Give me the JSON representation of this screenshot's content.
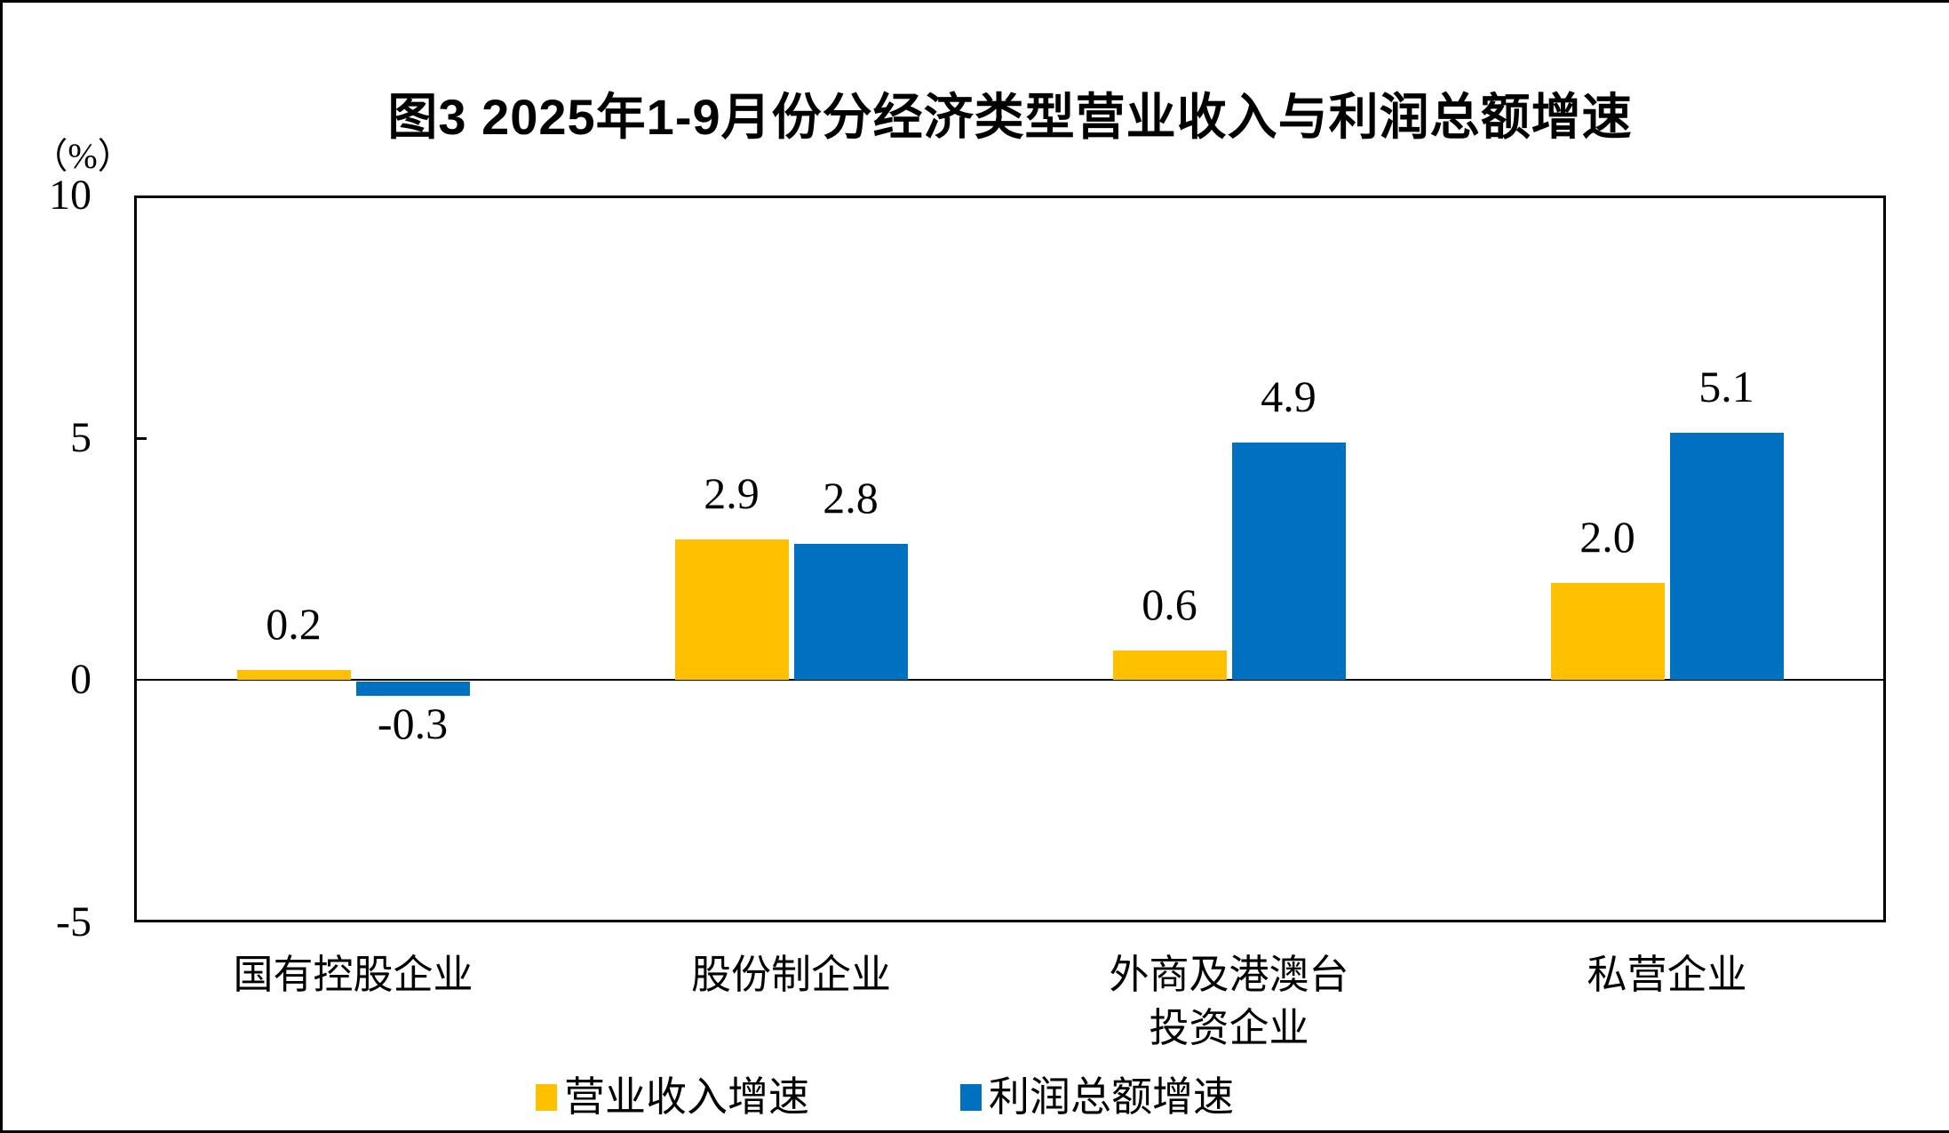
{
  "page": {
    "figure_caption": "图3 2025年1-9月份分经济类型营业收入与利润总额增速"
  },
  "chart_data": {
    "type": "bar",
    "title": "图3 2025年1-9月份分经济类型营业收入与利润总额增速",
    "ylabel_unit": "（%）",
    "ylim": [
      -5,
      10
    ],
    "yticks": [
      10,
      5,
      0,
      -5
    ],
    "grid": "none",
    "legend_position": "bottom",
    "categories": [
      "国有控股企业",
      "股份制企业",
      "外商及港澳台\n投资企业",
      "私营企业"
    ],
    "series": [
      {
        "name": "营业收入增速",
        "color": "#FFC000",
        "values": [
          0.2,
          2.9,
          0.6,
          2.0
        ],
        "labels": [
          "0.2",
          "2.9",
          "0.6",
          "2.0"
        ]
      },
      {
        "name": "利润总额增速",
        "color": "#0070C0",
        "values": [
          -0.3,
          2.8,
          4.9,
          5.1
        ],
        "labels": [
          "-0.3",
          "2.8",
          "4.9",
          "5.1"
        ]
      }
    ]
  }
}
